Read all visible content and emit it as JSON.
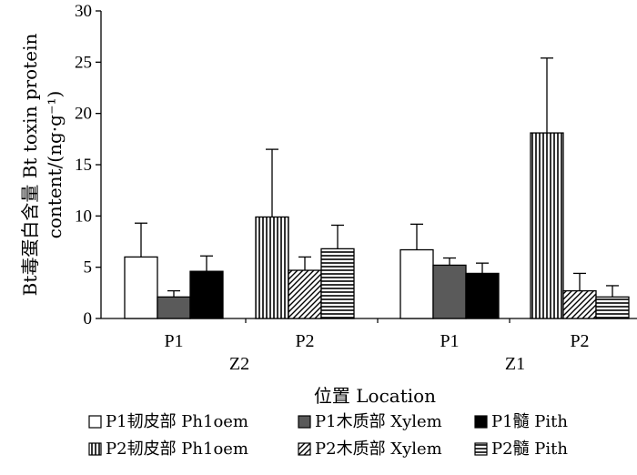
{
  "chart_data": {
    "type": "bar",
    "title": "",
    "ylabel_line1": "Bt毒蛋白含量 Bt toxin protein",
    "ylabel_line2": "content/(ng·g⁻¹)",
    "xlabel": "位置 Location",
    "ylim": [
      0,
      30
    ],
    "yticks": [
      0,
      5,
      10,
      15,
      20,
      25,
      30
    ],
    "error_bars": "one-sided (upper)",
    "groups": [
      {
        "label": "Z2",
        "subgroups": [
          {
            "label": "P1",
            "series": [
              {
                "name": "P1韧皮部 Ph1oem",
                "value": 6.0,
                "error": 3.3
              },
              {
                "name": "P1木质部 Xylem",
                "value": 2.1,
                "error": 0.6
              },
              {
                "name": "P1髓 Pith",
                "value": 4.6,
                "error": 1.5
              }
            ]
          },
          {
            "label": "P2",
            "series": [
              {
                "name": "P2韧皮部 Ph1oem",
                "value": 9.9,
                "error": 6.6
              },
              {
                "name": "P2木质部 Xylem",
                "value": 4.7,
                "error": 1.3
              },
              {
                "name": "P2髓 Pith",
                "value": 6.8,
                "error": 2.3
              }
            ]
          }
        ]
      },
      {
        "label": "Z1",
        "subgroups": [
          {
            "label": "P1",
            "series": [
              {
                "name": "P1韧皮部 Ph1oem",
                "value": 6.7,
                "error": 2.5
              },
              {
                "name": "P1木质部 Xylem",
                "value": 5.2,
                "error": 0.7
              },
              {
                "name": "P1髓 Pith",
                "value": 4.4,
                "error": 1.0
              }
            ]
          },
          {
            "label": "P2",
            "series": [
              {
                "name": "P2韧皮部 Ph1oem",
                "value": 18.1,
                "error": 7.3
              },
              {
                "name": "P2木质部 Xylem",
                "value": 2.7,
                "error": 1.7
              },
              {
                "name": "P2髓 Pith",
                "value": 2.1,
                "error": 1.1
              }
            ]
          }
        ]
      }
    ],
    "legend": [
      {
        "name": "P1韧皮部 Ph1oem",
        "pattern": "white"
      },
      {
        "name": "P1木质部 Xylem",
        "pattern": "gray"
      },
      {
        "name": "P1髓 Pith",
        "pattern": "black"
      },
      {
        "name": "P2韧皮部 Ph1oem",
        "pattern": "vertical-lines"
      },
      {
        "name": "P2木质部 Xylem",
        "pattern": "diagonal-hatch"
      },
      {
        "name": "P2髓 Pith",
        "pattern": "horizontal-lines"
      }
    ],
    "legend_position": "bottom",
    "grid": false
  },
  "colors": {
    "axis": "#000000",
    "gray_fill": "#5a5a5a",
    "black_fill": "#000000",
    "white_fill": "#ffffff"
  }
}
